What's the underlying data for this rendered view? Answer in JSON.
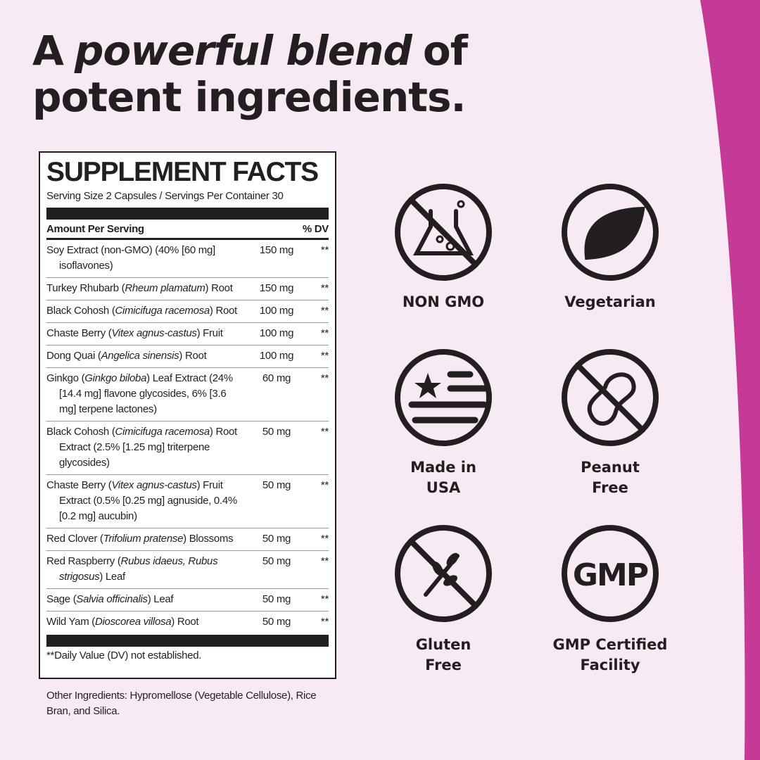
{
  "headline": {
    "line1": [
      "A",
      "powerful blend",
      "of"
    ],
    "line2": "potent ingredients."
  },
  "facts": {
    "title": "SUPPLEMENT FACTS",
    "serving": "Serving Size 2 Capsules / Servings Per Container 30",
    "header": {
      "amount": "Amount Per Serving",
      "dv": "% DV"
    },
    "rows": [
      {
        "name": [
          "Soy Extract (non-GMO) (40% [60 mg] isoflavones)"
        ],
        "amount": "150 mg",
        "dv": "**"
      },
      {
        "name": [
          "Turkey Rhubarb (",
          "Rheum plamatum",
          ") Root"
        ],
        "amount": "150 mg",
        "dv": "**"
      },
      {
        "name": [
          "Black Cohosh (",
          "Cimicifuga racemosa",
          ") Root"
        ],
        "amount": "100 mg",
        "dv": "**"
      },
      {
        "name": [
          "Chaste Berry (",
          "Vitex agnus-castus",
          ") Fruit"
        ],
        "amount": "100 mg",
        "dv": "**"
      },
      {
        "name": [
          "Dong Quai (",
          "Angelica sinensis",
          ") Root"
        ],
        "amount": "100 mg",
        "dv": "**"
      },
      {
        "name": [
          "Ginkgo (",
          "Ginkgo biloba",
          ") Leaf Extract (24% [14.4 mg] flavone glycosides, 6% [3.6 mg] terpene lactones)"
        ],
        "amount": "60 mg",
        "dv": "**"
      },
      {
        "name": [
          "Black Cohosh (",
          "Cimicifuga racemosa",
          ") Root Extract (2.5% [1.25 mg] triterpene glycosides)"
        ],
        "amount": "50 mg",
        "dv": "**"
      },
      {
        "name": [
          "Chaste Berry (",
          "Vitex agnus-castus",
          ") Fruit Extract (0.5% [0.25 mg] agnuside, 0.4% [0.2 mg] aucubin)"
        ],
        "amount": "50 mg",
        "dv": "**"
      },
      {
        "name": [
          "Red Clover (",
          "Trifolium pratense",
          ") Blossoms"
        ],
        "amount": "50 mg",
        "dv": "**"
      },
      {
        "name": [
          "Red Raspberry (",
          "Rubus idaeus, Rubus strigosus",
          ") Leaf"
        ],
        "amount": "50 mg",
        "dv": "**"
      },
      {
        "name": [
          "Sage (",
          "Salvia officinalis",
          ") Leaf"
        ],
        "amount": "50 mg",
        "dv": "**"
      },
      {
        "name": [
          "Wild Yam (",
          "Dioscorea villosa",
          ") Root"
        ],
        "amount": "50 mg",
        "dv": "**"
      }
    ],
    "footnote": "**Daily Value (DV) not established."
  },
  "other_ingredients": "Other Ingredients: Hypromellose (Vegetable Cellulose), Rice Bran, and Silica.",
  "badges": [
    {
      "label": [
        "NON GMO"
      ]
    },
    {
      "label": [
        "Vegetarian"
      ]
    },
    {
      "label": [
        "Made in",
        "USA"
      ]
    },
    {
      "label": [
        "Peanut",
        "Free"
      ]
    },
    {
      "label": [
        "Gluten",
        "Free"
      ]
    },
    {
      "label": [
        "GMP Certified",
        "Facility"
      ],
      "icon_text": "GMP"
    }
  ]
}
